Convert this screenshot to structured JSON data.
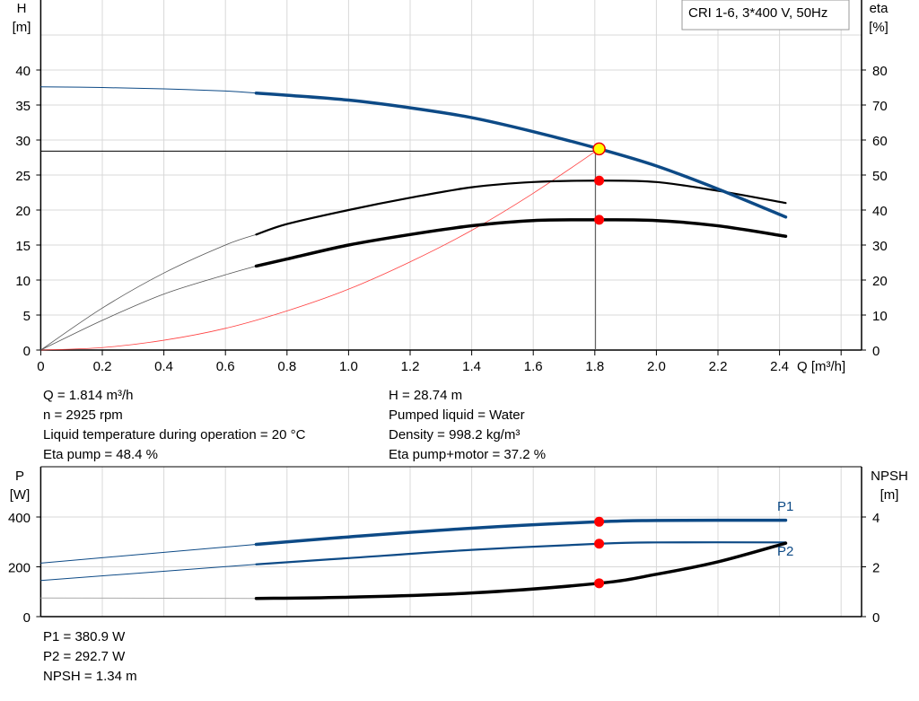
{
  "chart_data": [
    {
      "type": "line",
      "title": "CRI 1-6, 3*400 V, 50Hz",
      "xlabel": "Q [m³/h]",
      "ylabel_left": [
        "H",
        "[m]"
      ],
      "ylabel_right": [
        "eta",
        "[%]"
      ],
      "xlim": [
        0,
        2.66
      ],
      "ylim_left": [
        0,
        50
      ],
      "ylim_right": [
        0,
        100
      ],
      "x_ticks": [
        "0",
        "0.2",
        "0.4",
        "0.6",
        "0.8",
        "1.0",
        "1.2",
        "1.4",
        "1.6",
        "1.8",
        "2.0",
        "2.2",
        "2.4"
      ],
      "y_ticks_left": [
        "0",
        "5",
        "10",
        "15",
        "20",
        "25",
        "30",
        "35",
        "40"
      ],
      "y_ticks_right": [
        "0",
        "10",
        "20",
        "30",
        "40",
        "50",
        "60",
        "70",
        "80"
      ],
      "grid": true,
      "series": [
        {
          "axis": "left",
          "color": "#0d4a86",
          "x": [
            0,
            0.2,
            0.4,
            0.6,
            0.7,
            0.8,
            1.0,
            1.2,
            1.4,
            1.6,
            1.814,
            2.0,
            2.2,
            2.42
          ],
          "y": [
            37.6,
            37.5,
            37.3,
            37.0,
            36.7,
            36.4,
            35.7,
            34.6,
            33.2,
            31.2,
            28.74,
            26.3,
            23.0,
            19.0
          ]
        },
        {
          "axis": "right",
          "color": "#000000",
          "x": [
            0,
            0.2,
            0.4,
            0.6,
            0.7,
            0.8,
            1.0,
            1.2,
            1.4,
            1.6,
            1.814,
            2.0,
            2.2,
            2.42
          ],
          "y": [
            0,
            12,
            22,
            30,
            33,
            36,
            40,
            43.5,
            46.5,
            48,
            48.4,
            48,
            45.5,
            42
          ]
        },
        {
          "axis": "right",
          "color": "#000000",
          "x": [
            0,
            0.2,
            0.4,
            0.6,
            0.7,
            0.8,
            1.0,
            1.2,
            1.4,
            1.6,
            1.814,
            2.0,
            2.2,
            2.42
          ],
          "y": [
            0,
            8.5,
            16,
            21.5,
            24,
            26,
            30,
            33,
            35.5,
            37,
            37.2,
            37,
            35.5,
            32.5
          ]
        },
        {
          "axis": "left",
          "color": "#ff0000",
          "x": [
            0,
            0.2,
            0.4,
            0.6,
            0.8,
            1.0,
            1.2,
            1.4,
            1.6,
            1.814
          ],
          "y": [
            0,
            0.35,
            1.4,
            3.1,
            5.6,
            8.7,
            12.6,
            17.1,
            22.4,
            28.74
          ]
        }
      ],
      "operating_point": {
        "q": 1.814,
        "h": 28.74,
        "eta_pump": 48.4,
        "eta_total": 37.2
      }
    },
    {
      "type": "line",
      "xlim": [
        0,
        2.66
      ],
      "ylabel_left": [
        "P",
        "[W]"
      ],
      "ylabel_right": [
        "NPSH",
        "[m]"
      ],
      "ylim_left": [
        0,
        600
      ],
      "ylim_right": [
        0,
        6
      ],
      "y_ticks_left": [
        "0",
        "200",
        "400"
      ],
      "y_ticks_right": [
        "0",
        "2",
        "4"
      ],
      "grid": true,
      "series": [
        {
          "name": "P1",
          "axis": "left",
          "color": "#0d4a86",
          "x": [
            0,
            0.7,
            1.0,
            1.4,
            1.814,
            2.0,
            2.42
          ],
          "y": [
            215,
            290,
            320,
            355,
            380.9,
            386,
            387
          ]
        },
        {
          "name": "P2",
          "axis": "left",
          "color": "#0d4a86",
          "x": [
            0,
            0.7,
            1.0,
            1.4,
            1.814,
            2.0,
            2.42
          ],
          "y": [
            145,
            210,
            235,
            268,
            292.7,
            298,
            298
          ]
        },
        {
          "axis": "right",
          "color": "#000000",
          "x": [
            0,
            0.7,
            1.0,
            1.4,
            1.814,
            2.0,
            2.2,
            2.42
          ],
          "y": [
            0.75,
            0.73,
            0.78,
            0.95,
            1.34,
            1.7,
            2.2,
            2.95
          ]
        }
      ]
    }
  ],
  "info_top_left": [
    "Q = 1.814 m³/h",
    "n = 2925 rpm",
    "Liquid temperature during operation = 20 °C",
    "Eta pump = 48.4 %"
  ],
  "info_top_right": [
    "H = 28.74 m",
    "Pumped liquid = Water",
    "Density = 998.2 kg/m³",
    "Eta pump+motor = 37.2 %"
  ],
  "info_bottom": [
    "P1 = 380.9 W",
    "P2 = 292.7 W",
    "NPSH = 1.34 m"
  ]
}
